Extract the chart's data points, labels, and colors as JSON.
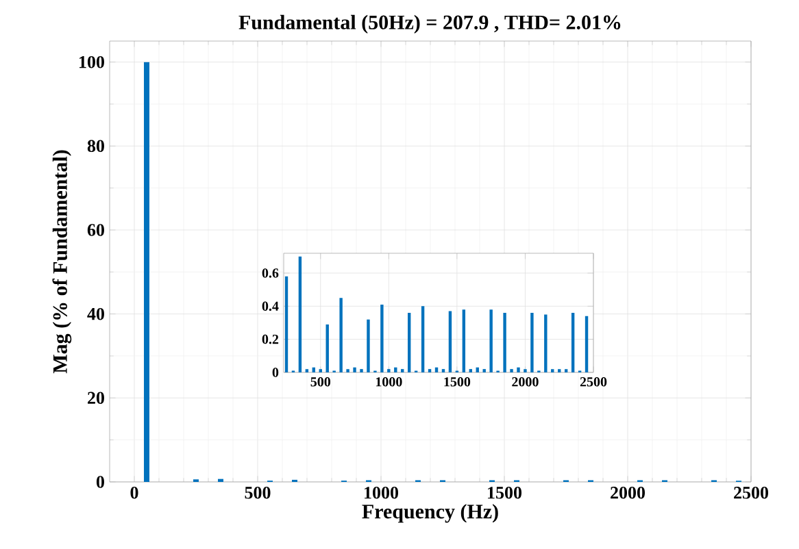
{
  "chart_data": [
    {
      "type": "bar",
      "title": "Fundamental (50Hz) = 207.9 , THD= 2.01%",
      "xlabel": "Frequency (Hz)",
      "ylabel": "Mag (% of Fundamental)",
      "x": [
        50,
        250,
        350,
        550,
        650,
        850,
        950,
        1150,
        1250,
        1450,
        1550,
        1750,
        1850,
        2050,
        2150,
        2350,
        2450
      ],
      "values": [
        100,
        0.6,
        0.7,
        0.3,
        0.5,
        0.3,
        0.4,
        0.4,
        0.4,
        0.4,
        0.4,
        0.4,
        0.4,
        0.4,
        0.4,
        0.4,
        0.3
      ],
      "color": "#0072bd",
      "xlim": [
        -100,
        2500
      ],
      "ylim": [
        0,
        105
      ],
      "xticks": [
        0,
        500,
        1000,
        1500,
        2000,
        2500
      ],
      "yticks": [
        0,
        20,
        40,
        60,
        80,
        100
      ],
      "grid": true
    },
    {
      "type": "bar",
      "x": [
        250,
        300,
        350,
        400,
        450,
        500,
        550,
        600,
        650,
        700,
        750,
        800,
        850,
        900,
        950,
        1000,
        1050,
        1100,
        1150,
        1200,
        1250,
        1300,
        1350,
        1400,
        1450,
        1500,
        1550,
        1600,
        1650,
        1700,
        1750,
        1800,
        1850,
        1900,
        1950,
        2000,
        2050,
        2100,
        2150,
        2200,
        2250,
        2300,
        2350,
        2400,
        2450
      ],
      "values": [
        0.58,
        0.01,
        0.7,
        0.02,
        0.03,
        0.02,
        0.29,
        0.01,
        0.45,
        0.02,
        0.03,
        0.02,
        0.32,
        0.01,
        0.41,
        0.02,
        0.03,
        0.02,
        0.36,
        0.01,
        0.4,
        0.02,
        0.03,
        0.02,
        0.37,
        0.01,
        0.38,
        0.02,
        0.03,
        0.02,
        0.38,
        0.01,
        0.36,
        0.02,
        0.03,
        0.02,
        0.36,
        0.01,
        0.35,
        0.02,
        0.02,
        0.02,
        0.36,
        0.01,
        0.34
      ],
      "color": "#0072bd",
      "xlim": [
        230,
        2500
      ],
      "ylim": [
        0,
        0.72
      ],
      "xticks": [
        500,
        1000,
        1500,
        2000,
        2500
      ],
      "yticks": [
        0,
        0.2,
        0.4,
        0.6
      ],
      "grid": true
    }
  ]
}
